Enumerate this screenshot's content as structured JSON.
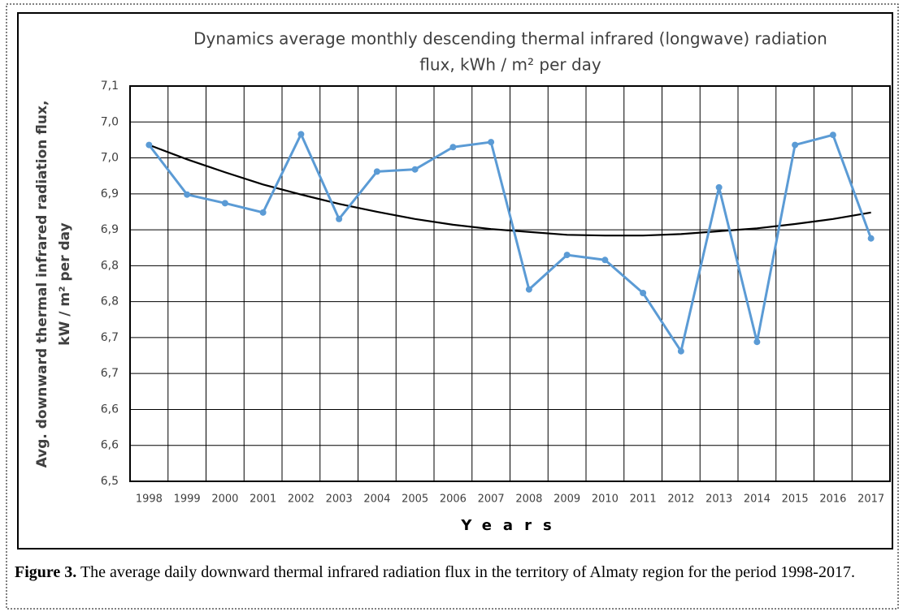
{
  "chart_data": {
    "type": "line",
    "title": [
      "Dynamics average monthly descending thermal infrared (longwave) radiation",
      "flux, kWh / m² per day"
    ],
    "y_label": [
      "Avg. downward thermal infrared radiation flux,",
      "kW / m² per day"
    ],
    "x_label": "Years",
    "categories": [
      "1998",
      "1999",
      "2000",
      "2001",
      "2002",
      "2003",
      "2004",
      "2005",
      "2006",
      "2007",
      "2008",
      "2009",
      "2010",
      "2011",
      "2012",
      "2013",
      "2014",
      "2015",
      "2016",
      "2017"
    ],
    "series": [
      {
        "color": "#5b9bd5",
        "values": [
          6.968,
          6.899,
          6.887,
          6.874,
          6.983,
          6.865,
          6.931,
          6.934,
          6.965,
          6.972,
          6.767,
          6.815,
          6.808,
          6.762,
          6.681,
          6.909,
          6.694,
          6.968,
          6.982,
          6.838
        ]
      },
      {
        "color": "#000000",
        "values": [
          6.968,
          6.948,
          6.93,
          6.913,
          6.899,
          6.886,
          6.875,
          6.865,
          6.857,
          6.851,
          6.847,
          6.843,
          6.842,
          6.842,
          6.844,
          6.848,
          6.852,
          6.858,
          6.865,
          6.874
        ]
      }
    ],
    "ylim": [
      6.5,
      7.05
    ],
    "yticks": [
      {
        "value": 6.5,
        "label": "6,5"
      },
      {
        "value": 6.55,
        "label": "6,6"
      },
      {
        "value": 6.6,
        "label": "6,6"
      },
      {
        "value": 6.65,
        "label": "6,7"
      },
      {
        "value": 6.7,
        "label": "6,7"
      },
      {
        "value": 6.75,
        "label": "6,8"
      },
      {
        "value": 6.8,
        "label": "6,8"
      },
      {
        "value": 6.85,
        "label": "6,9"
      },
      {
        "value": 6.9,
        "label": "6,9"
      },
      {
        "value": 6.95,
        "label": "7,0"
      },
      {
        "value": 7.0,
        "label": "7,0"
      },
      {
        "value": 7.05,
        "label": "7,1"
      }
    ],
    "grid": true
  },
  "caption": {
    "label": "Figure 3.",
    "text": "The average daily downward thermal infrared radiation flux in the territory of Almaty region for the period 1998-2017."
  }
}
